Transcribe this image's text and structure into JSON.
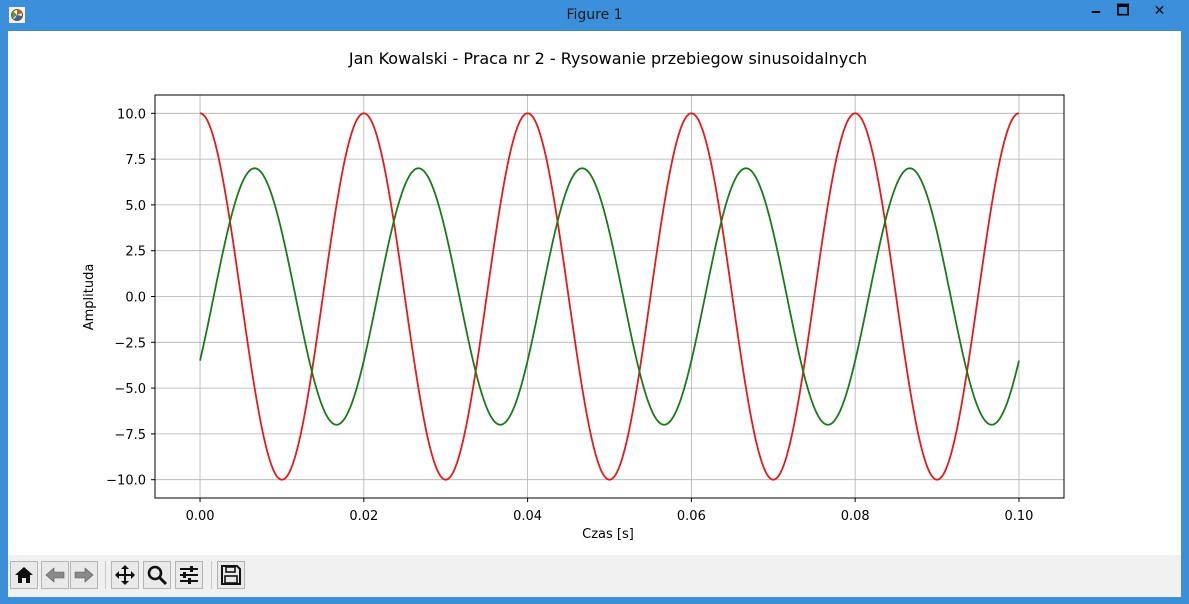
{
  "window": {
    "title": "Figure 1",
    "minimize": "🗕",
    "maximize": "🗖",
    "close": "✕"
  },
  "toolbar": {
    "buttons": [
      {
        "name": "home-button",
        "icon": "home-icon"
      },
      {
        "name": "back-button",
        "icon": "arrow-left-icon"
      },
      {
        "name": "forward-button",
        "icon": "arrow-right-icon"
      },
      {
        "name": "pan-button",
        "icon": "move-icon"
      },
      {
        "name": "zoom-button",
        "icon": "magnifier-icon"
      },
      {
        "name": "configure-subplots-button",
        "icon": "sliders-icon"
      },
      {
        "name": "save-button",
        "icon": "floppy-disk-icon"
      }
    ]
  },
  "chart_data": {
    "type": "line",
    "title": "Jan Kowalski - Praca nr 2 - Rysowanie przebiegow sinusoidalnych",
    "xlabel": "Czas [s]",
    "ylabel": "Amplituda",
    "xlim": [
      -0.0055,
      0.1055
    ],
    "ylim": [
      -11.0,
      11.0
    ],
    "xticks": [
      0.0,
      0.02,
      0.04,
      0.06,
      0.08,
      0.1
    ],
    "xtick_labels": [
      "0.00",
      "0.02",
      "0.04",
      "0.06",
      "0.08",
      "0.10"
    ],
    "yticks": [
      10.0,
      7.5,
      5.0,
      2.5,
      0.0,
      -2.5,
      -5.0,
      -7.5,
      -10.0
    ],
    "ytick_labels": [
      "10.0",
      "7.5",
      "5.0",
      "2.5",
      "0.0",
      "−2.5",
      "−5.0",
      "−7.5",
      "−10.0"
    ],
    "grid": true,
    "series": [
      {
        "color": "#e41a1c",
        "amplitude": 10,
        "frequency_hz": 50,
        "phase_deg": 90,
        "x_range": [
          0.0,
          0.1
        ]
      },
      {
        "color": "#1a7a1a",
        "amplitude": 7,
        "frequency_hz": 50,
        "phase_deg": -30,
        "x_range": [
          0.0,
          0.1
        ]
      }
    ]
  }
}
